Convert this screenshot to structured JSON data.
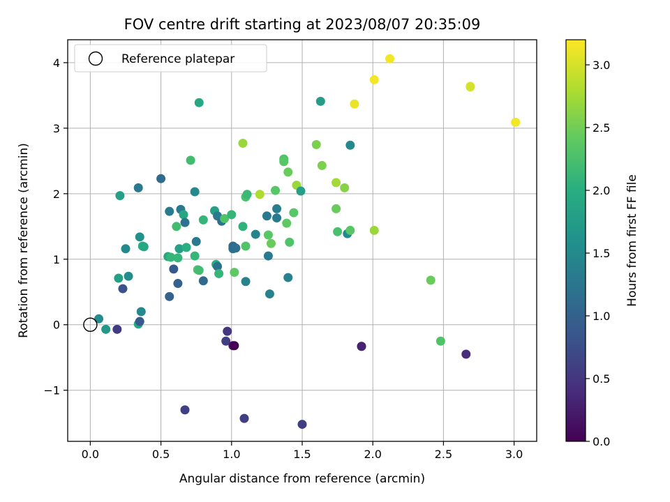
{
  "chart_data": {
    "type": "scatter",
    "title": "FOV centre drift starting at 2023/08/07 20:35:09",
    "xlabel": "Angular distance from reference (arcmin)",
    "ylabel": "Rotation from reference (arcmin)",
    "xlim": [
      -0.16,
      3.16
    ],
    "ylim": [
      -1.78,
      4.35
    ],
    "xticks": [
      0.0,
      0.5,
      1.0,
      1.5,
      2.0,
      2.5,
      3.0
    ],
    "xtick_labels": [
      "0.0",
      "0.5",
      "1.0",
      "1.5",
      "2.0",
      "2.5",
      "3.0"
    ],
    "yticks": [
      -1,
      0,
      1,
      2,
      3,
      4
    ],
    "ytick_labels": [
      "−1",
      "0",
      "1",
      "2",
      "3",
      "4"
    ],
    "grid": true,
    "legend": {
      "position": "top-left",
      "entries": [
        {
          "label": "Reference platepar",
          "marker": "open-circle"
        }
      ]
    },
    "colorbar": {
      "label": "Hours from first FF file",
      "min": 0.0,
      "max": 3.2,
      "ticks": [
        0.0,
        0.5,
        1.0,
        1.5,
        2.0,
        2.5,
        3.0
      ],
      "tick_labels": [
        "0.0",
        "0.5",
        "1.0",
        "1.5",
        "2.0",
        "2.5",
        "3.0"
      ],
      "colormap": "viridis"
    },
    "reference_point": {
      "x": 0.0,
      "y": 0.0
    },
    "points": [
      {
        "x": 0.06,
        "y": 0.09,
        "c": 1.55
      },
      {
        "x": 0.11,
        "y": -0.07,
        "c": 1.7
      },
      {
        "x": 0.19,
        "y": -0.07,
        "c": 0.55
      },
      {
        "x": 0.2,
        "y": 0.71,
        "c": 1.8
      },
      {
        "x": 0.21,
        "y": 1.97,
        "c": 1.8
      },
      {
        "x": 0.23,
        "y": 0.55,
        "c": 0.8
      },
      {
        "x": 0.25,
        "y": 1.16,
        "c": 1.5
      },
      {
        "x": 0.27,
        "y": 0.74,
        "c": 1.55
      },
      {
        "x": 0.34,
        "y": 2.09,
        "c": 1.3
      },
      {
        "x": 0.34,
        "y": 0.01,
        "c": 1.9
      },
      {
        "x": 0.35,
        "y": 0.05,
        "c": 0.9
      },
      {
        "x": 0.35,
        "y": 1.34,
        "c": 1.6
      },
      {
        "x": 0.36,
        "y": 0.2,
        "c": 1.5
      },
      {
        "x": 0.37,
        "y": 1.2,
        "c": 2.0
      },
      {
        "x": 0.38,
        "y": 1.19,
        "c": 1.9
      },
      {
        "x": 0.5,
        "y": 2.23,
        "c": 1.1
      },
      {
        "x": 0.55,
        "y": 1.04,
        "c": 1.9
      },
      {
        "x": 0.56,
        "y": 0.43,
        "c": 1.0
      },
      {
        "x": 0.56,
        "y": 1.73,
        "c": 1.3
      },
      {
        "x": 0.57,
        "y": 1.03,
        "c": 2.1
      },
      {
        "x": 0.59,
        "y": 0.85,
        "c": 0.9
      },
      {
        "x": 0.61,
        "y": 1.5,
        "c": 2.2
      },
      {
        "x": 0.62,
        "y": 1.02,
        "c": 2.1
      },
      {
        "x": 0.62,
        "y": 0.63,
        "c": 1.0
      },
      {
        "x": 0.63,
        "y": 1.16,
        "c": 1.8
      },
      {
        "x": 0.64,
        "y": 1.76,
        "c": 1.3
      },
      {
        "x": 0.66,
        "y": 1.68,
        "c": 1.9
      },
      {
        "x": 0.67,
        "y": 1.56,
        "c": 1.2
      },
      {
        "x": 0.67,
        "y": -1.3,
        "c": 0.6
      },
      {
        "x": 0.68,
        "y": 1.18,
        "c": 2.0
      },
      {
        "x": 0.71,
        "y": 2.51,
        "c": 2.2
      },
      {
        "x": 0.74,
        "y": 1.05,
        "c": 2.1
      },
      {
        "x": 0.74,
        "y": 2.03,
        "c": 1.5
      },
      {
        "x": 0.75,
        "y": 1.27,
        "c": 1.3
      },
      {
        "x": 0.76,
        "y": 0.84,
        "c": 2.3
      },
      {
        "x": 0.77,
        "y": 0.83,
        "c": 2.2
      },
      {
        "x": 0.77,
        "y": 3.39,
        "c": 1.9
      },
      {
        "x": 0.8,
        "y": 1.6,
        "c": 2.1
      },
      {
        "x": 0.8,
        "y": 0.67,
        "c": 1.1
      },
      {
        "x": 0.88,
        "y": 1.74,
        "c": 1.8
      },
      {
        "x": 0.89,
        "y": 0.92,
        "c": 2.0
      },
      {
        "x": 0.9,
        "y": 0.89,
        "c": 1.2
      },
      {
        "x": 0.9,
        "y": 1.66,
        "c": 1.3
      },
      {
        "x": 0.91,
        "y": 0.78,
        "c": 2.1
      },
      {
        "x": 0.93,
        "y": 1.58,
        "c": 1.2
      },
      {
        "x": 0.95,
        "y": 1.62,
        "c": 2.3
      },
      {
        "x": 0.96,
        "y": -0.25,
        "c": 0.6
      },
      {
        "x": 0.97,
        "y": -0.1,
        "c": 0.5
      },
      {
        "x": 1.0,
        "y": 1.68,
        "c": 2.1
      },
      {
        "x": 1.01,
        "y": 1.16,
        "c": 1.2
      },
      {
        "x": 1.01,
        "y": 1.2,
        "c": 1.1
      },
      {
        "x": 1.01,
        "y": -0.32,
        "c": 0.2
      },
      {
        "x": 1.02,
        "y": -0.32,
        "c": 0.0
      },
      {
        "x": 1.02,
        "y": 0.8,
        "c": 2.4
      },
      {
        "x": 1.03,
        "y": 1.17,
        "c": 1.15
      },
      {
        "x": 1.08,
        "y": 2.77,
        "c": 2.7
      },
      {
        "x": 1.08,
        "y": 1.5,
        "c": 2.05
      },
      {
        "x": 1.09,
        "y": -1.43,
        "c": 0.6
      },
      {
        "x": 1.1,
        "y": 1.2,
        "c": 2.3
      },
      {
        "x": 1.1,
        "y": 1.95,
        "c": 2.25
      },
      {
        "x": 1.1,
        "y": 0.66,
        "c": 1.4
      },
      {
        "x": 1.11,
        "y": 1.99,
        "c": 2.15
      },
      {
        "x": 1.17,
        "y": 1.38,
        "c": 1.45
      },
      {
        "x": 1.2,
        "y": 1.99,
        "c": 2.8
      },
      {
        "x": 1.25,
        "y": 1.66,
        "c": 1.3
      },
      {
        "x": 1.26,
        "y": 1.37,
        "c": 2.35
      },
      {
        "x": 1.26,
        "y": 1.05,
        "c": 1.3
      },
      {
        "x": 1.27,
        "y": 0.47,
        "c": 1.4
      },
      {
        "x": 1.28,
        "y": 1.24,
        "c": 2.45
      },
      {
        "x": 1.31,
        "y": 2.05,
        "c": 2.35
      },
      {
        "x": 1.32,
        "y": 1.77,
        "c": 1.35
      },
      {
        "x": 1.32,
        "y": 1.63,
        "c": 1.3
      },
      {
        "x": 1.37,
        "y": 2.53,
        "c": 2.3
      },
      {
        "x": 1.37,
        "y": 2.49,
        "c": 2.35
      },
      {
        "x": 1.39,
        "y": 1.55,
        "c": 2.4
      },
      {
        "x": 1.4,
        "y": 0.72,
        "c": 1.4
      },
      {
        "x": 1.4,
        "y": 2.33,
        "c": 2.45
      },
      {
        "x": 1.41,
        "y": 1.26,
        "c": 2.3
      },
      {
        "x": 1.44,
        "y": 1.71,
        "c": 2.35
      },
      {
        "x": 1.46,
        "y": 2.13,
        "c": 2.7
      },
      {
        "x": 1.49,
        "y": 2.04,
        "c": 1.8
      },
      {
        "x": 1.5,
        "y": -1.52,
        "c": 0.6
      },
      {
        "x": 1.6,
        "y": 2.75,
        "c": 2.55
      },
      {
        "x": 1.63,
        "y": 3.41,
        "c": 1.75
      },
      {
        "x": 1.64,
        "y": 2.43,
        "c": 2.55
      },
      {
        "x": 1.74,
        "y": 2.17,
        "c": 2.75
      },
      {
        "x": 1.74,
        "y": 1.77,
        "c": 2.45
      },
      {
        "x": 1.75,
        "y": 1.42,
        "c": 2.25
      },
      {
        "x": 1.8,
        "y": 2.09,
        "c": 2.6
      },
      {
        "x": 1.82,
        "y": 1.39,
        "c": 1.5
      },
      {
        "x": 1.84,
        "y": 2.74,
        "c": 1.5
      },
      {
        "x": 1.84,
        "y": 1.44,
        "c": 2.35
      },
      {
        "x": 1.87,
        "y": 3.37,
        "c": 3.1
      },
      {
        "x": 1.92,
        "y": -0.33,
        "c": 0.5
      },
      {
        "x": 1.92,
        "y": -0.33,
        "c": 0.3
      },
      {
        "x": 2.01,
        "y": 3.74,
        "c": 3.15
      },
      {
        "x": 2.01,
        "y": 1.44,
        "c": 2.7
      },
      {
        "x": 2.12,
        "y": 4.06,
        "c": 3.15
      },
      {
        "x": 2.41,
        "y": 0.68,
        "c": 2.45
      },
      {
        "x": 2.48,
        "y": -0.25,
        "c": 2.3
      },
      {
        "x": 2.66,
        "y": -0.45,
        "c": 0.4
      },
      {
        "x": 2.69,
        "y": 3.64,
        "c": 3.1
      },
      {
        "x": 2.69,
        "y": 3.63,
        "c": 3.0
      },
      {
        "x": 3.01,
        "y": 3.09,
        "c": 3.15
      }
    ]
  }
}
